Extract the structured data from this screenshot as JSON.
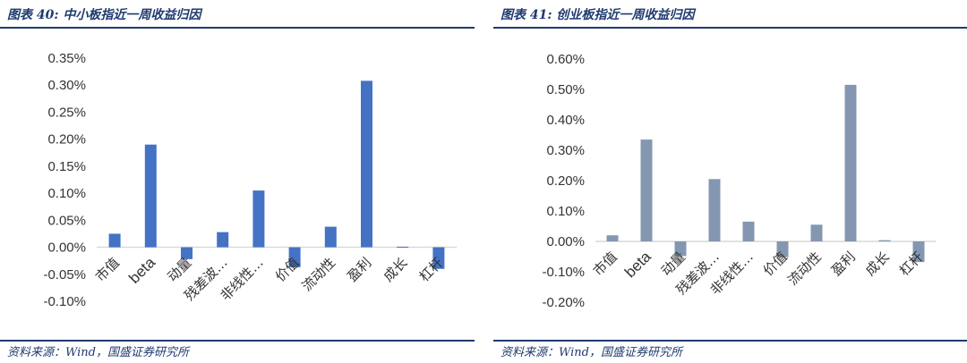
{
  "panels": [
    {
      "title": "图表 40:  中小板指近一周收益归因",
      "source": "资料来源：Wind，国盛证券研究所",
      "colors": {
        "bar": "#4472c4",
        "axis": "#d9d9d9",
        "rule": "#1f3a6e"
      },
      "chart_data": {
        "type": "bar",
        "categories": [
          "市值",
          "beta",
          "动量",
          "残差波…",
          "非线性…",
          "价值",
          "流动性",
          "盈利",
          "成长",
          "杠杆"
        ],
        "values": [
          0.025,
          0.19,
          -0.022,
          0.028,
          0.105,
          -0.037,
          0.038,
          0.308,
          0.001,
          -0.04
        ],
        "ylim": [
          -0.1,
          0.35
        ],
        "yticks": [
          0.35,
          0.3,
          0.25,
          0.2,
          0.15,
          0.1,
          0.05,
          0.0,
          -0.05,
          -0.1
        ],
        "ytick_labels": [
          "0.35%",
          "0.30%",
          "0.25%",
          "0.20%",
          "0.15%",
          "0.10%",
          "0.05%",
          "0.00%",
          "-0.05%",
          "-0.10%"
        ],
        "title": "",
        "xlabel": "",
        "ylabel": "",
        "grid": false
      }
    },
    {
      "title": "图表 41:  创业板指近一周收益归因",
      "source": "资料来源：Wind，国盛证券研究所",
      "colors": {
        "bar": "#8497b0",
        "axis": "#d9d9d9",
        "rule": "#1f3a6e"
      },
      "chart_data": {
        "type": "bar",
        "categories": [
          "市值",
          "beta",
          "动量",
          "残差波…",
          "非线性…",
          "价值",
          "流动性",
          "盈利",
          "成长",
          "杠杆"
        ],
        "values": [
          0.02,
          0.335,
          -0.048,
          0.205,
          0.065,
          -0.052,
          0.055,
          0.515,
          0.004,
          -0.068
        ],
        "ylim": [
          -0.2,
          0.6
        ],
        "yticks": [
          0.6,
          0.5,
          0.4,
          0.3,
          0.2,
          0.1,
          0.0,
          -0.1,
          -0.2
        ],
        "ytick_labels": [
          "0.60%",
          "0.50%",
          "0.40%",
          "0.30%",
          "0.20%",
          "0.10%",
          "0.00%",
          "-0.10%",
          "-0.20%"
        ],
        "title": "",
        "xlabel": "",
        "ylabel": "",
        "grid": false
      }
    }
  ]
}
